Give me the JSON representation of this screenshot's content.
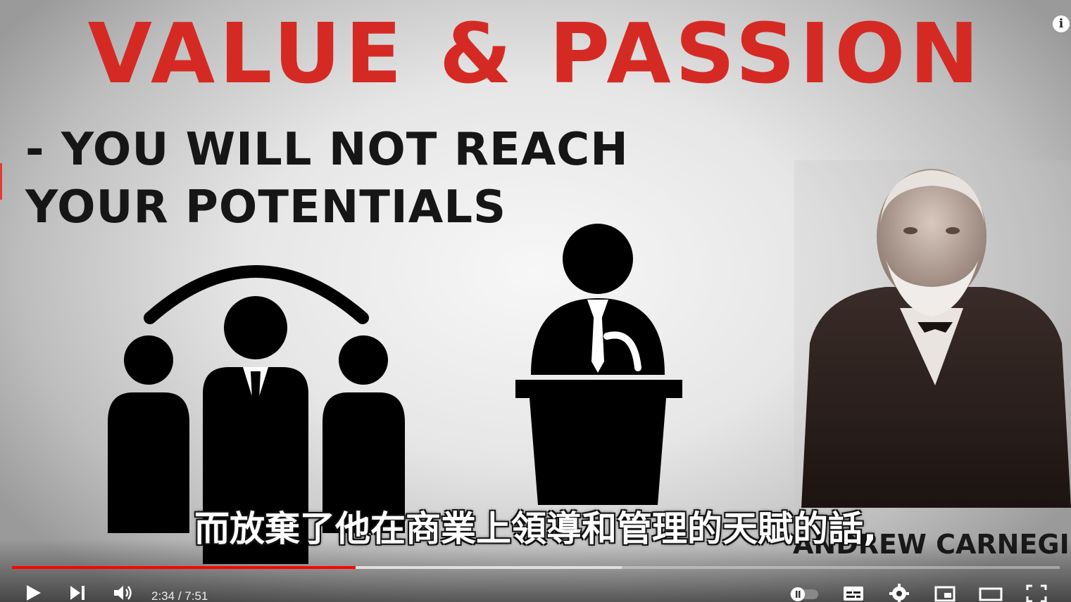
{
  "video": {
    "title_text": "VALUE & PASSION",
    "subtitle_line1": "- YOU WILL NOT REACH",
    "subtitle_line2": "YOUR POTENTIALS",
    "person_name": "ANDREW CARNEGIE",
    "caption": "而放棄了他在商業上領導和管理的天賦的話,",
    "info_label": "i"
  },
  "player": {
    "current_time": "2:34",
    "separator": " / ",
    "duration": "7:51",
    "progress_played": 0.328,
    "progress_buffered": 0.582,
    "accent_color": "#ff0000",
    "title_color": "#d52a24"
  },
  "controls": {
    "icons": [
      "play-icon",
      "next-icon",
      "volume-icon",
      "autoplay-toggle-icon",
      "subtitles-icon",
      "settings-icon",
      "miniplayer-icon",
      "theater-icon",
      "fullscreen-icon"
    ]
  }
}
